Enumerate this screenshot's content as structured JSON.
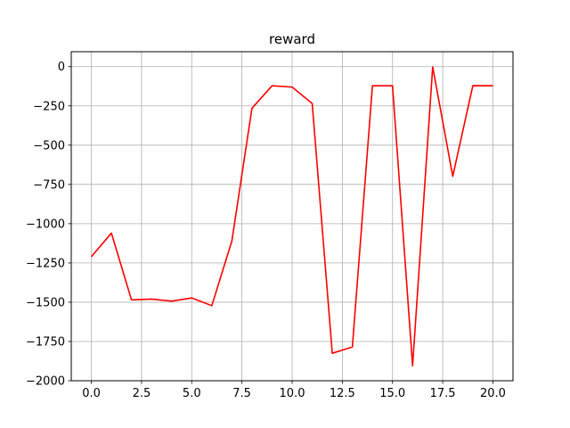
{
  "chart_data": {
    "type": "line",
    "title": "reward",
    "xlabel": "",
    "ylabel": "",
    "xlim": [
      -1.0,
      21.0
    ],
    "ylim": [
      -2000,
      95
    ],
    "xticks": [
      0.0,
      2.5,
      5.0,
      7.5,
      10.0,
      12.5,
      15.0,
      17.5,
      20.0
    ],
    "xtick_labels": [
      "0.0",
      "2.5",
      "5.0",
      "7.5",
      "10.0",
      "12.5",
      "15.0",
      "17.5",
      "20.0"
    ],
    "yticks": [
      0,
      -250,
      -500,
      -750,
      -1000,
      -1250,
      -1500,
      -1750,
      -2000
    ],
    "ytick_labels": [
      "0",
      "−250",
      "−500",
      "−750",
      "−1000",
      "−1250",
      "−1500",
      "−1750",
      "−2000"
    ],
    "grid": true,
    "series": [
      {
        "color": "#ff0000",
        "x": [
          0,
          1,
          2,
          3,
          4,
          5,
          6,
          7,
          8,
          9,
          10,
          11,
          12,
          13,
          14,
          15,
          16,
          17,
          18,
          19,
          20
        ],
        "values": [
          -1210,
          -1060,
          -1485,
          -1480,
          -1493,
          -1473,
          -1522,
          -1110,
          -265,
          -122,
          -130,
          -235,
          -1825,
          -1785,
          -122,
          -122,
          -1905,
          -2,
          -698,
          -121,
          -122
        ]
      }
    ]
  }
}
